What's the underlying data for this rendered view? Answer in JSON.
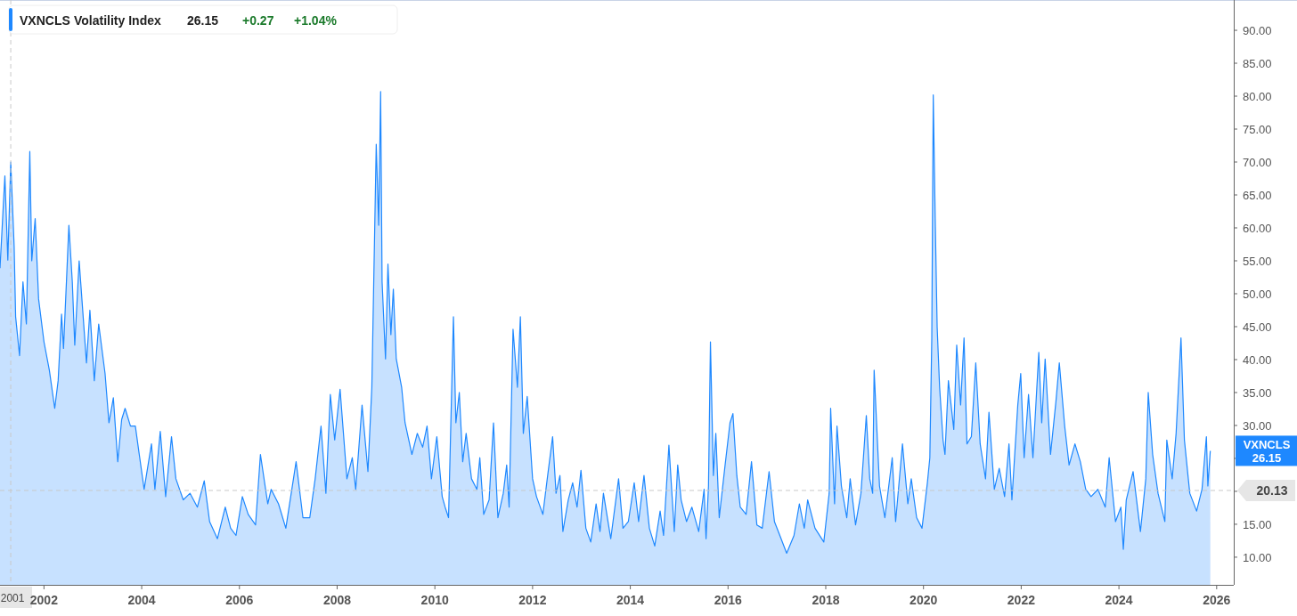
{
  "chart_data": {
    "type": "area",
    "title": "VXNCLS",
    "subtitle": "Volatility Index",
    "annotations": [
      "26.15",
      "+0.27",
      "+1.04%",
      "26.15"
    ],
    "x": [
      2001.1,
      2001.2,
      2001.26,
      2001.32,
      2001.39,
      2001.42,
      2001.5,
      2001.57,
      2001.64,
      2001.71,
      2001.75,
      2001.82,
      2001.89,
      2002.0,
      2002.11,
      2002.22,
      2002.29,
      2002.36,
      2002.4,
      2002.51,
      2002.58,
      2002.63,
      2002.72,
      2002.87,
      2002.94,
      2003.03,
      2003.12,
      2003.25,
      2003.33,
      2003.42,
      2003.51,
      2003.59,
      2003.66,
      2003.77,
      2003.87,
      2003.95,
      2004.05,
      2004.2,
      2004.27,
      2004.38,
      2004.49,
      2004.61,
      2004.7,
      2004.85,
      2004.99,
      2005.14,
      2005.28,
      2005.39,
      2005.55,
      2005.71,
      2005.82,
      2005.93,
      2006.06,
      2006.18,
      2006.33,
      2006.43,
      2006.58,
      2006.65,
      2006.8,
      2006.95,
      2007.16,
      2007.3,
      2007.44,
      2007.55,
      2007.67,
      2007.77,
      2007.86,
      2007.95,
      2008.06,
      2008.2,
      2008.31,
      2008.38,
      2008.51,
      2008.63,
      2008.71,
      2008.8,
      2008.85,
      2008.89,
      2008.92,
      2008.99,
      2009.04,
      2009.1,
      2009.15,
      2009.21,
      2009.32,
      2009.39,
      2009.53,
      2009.64,
      2009.75,
      2009.84,
      2009.93,
      2010.04,
      2010.15,
      2010.21,
      2010.28,
      2010.38,
      2010.43,
      2010.5,
      2010.57,
      2010.64,
      2010.75,
      2010.86,
      2010.92,
      2011.0,
      2011.11,
      2011.2,
      2011.29,
      2011.4,
      2011.47,
      2011.52,
      2011.6,
      2011.69,
      2011.75,
      2011.81,
      2011.89,
      2012.0,
      2012.08,
      2012.21,
      2012.3,
      2012.41,
      2012.48,
      2012.56,
      2012.62,
      2012.73,
      2012.82,
      2012.91,
      2012.99,
      2013.09,
      2013.19,
      2013.3,
      2013.38,
      2013.45,
      2013.6,
      2013.76,
      2013.85,
      2013.96,
      2014.08,
      2014.17,
      2014.28,
      2014.39,
      2014.5,
      2014.61,
      2014.68,
      2014.79,
      2014.9,
      2014.97,
      2015.04,
      2015.15,
      2015.26,
      2015.4,
      2015.51,
      2015.55,
      2015.6,
      2015.64,
      2015.7,
      2015.75,
      2015.82,
      2015.94,
      2016.04,
      2016.1,
      2016.18,
      2016.25,
      2016.37,
      2016.48,
      2016.59,
      2016.7,
      2016.84,
      2016.95,
      2017.06,
      2017.2,
      2017.35,
      2017.46,
      2017.56,
      2017.63,
      2017.78,
      2017.96,
      2018.07,
      2018.1,
      2018.18,
      2018.23,
      2018.32,
      2018.43,
      2018.5,
      2018.61,
      2018.72,
      2018.83,
      2018.9,
      2018.96,
      2018.99,
      2019.1,
      2019.21,
      2019.36,
      2019.43,
      2019.57,
      2019.68,
      2019.75,
      2019.86,
      2019.97,
      2020.08,
      2020.13,
      2020.17,
      2020.2,
      2020.24,
      2020.28,
      2020.33,
      2020.4,
      2020.44,
      2020.51,
      2020.62,
      2020.68,
      2020.76,
      2020.83,
      2020.89,
      2020.98,
      2021.07,
      2021.16,
      2021.27,
      2021.34,
      2021.45,
      2021.55,
      2021.66,
      2021.75,
      2021.81,
      2021.93,
      2021.99,
      2022.06,
      2022.15,
      2022.24,
      2022.36,
      2022.42,
      2022.49,
      2022.6,
      2022.71,
      2022.78,
      2022.89,
      2022.98,
      2023.1,
      2023.21,
      2023.32,
      2023.43,
      2023.57,
      2023.72,
      2023.8,
      2023.93,
      2024.04,
      2024.09,
      2024.15,
      2024.29,
      2024.44,
      2024.55,
      2024.6,
      2024.69,
      2024.8,
      2024.94,
      2024.98,
      2025.09,
      2025.17,
      2025.27,
      2025.34,
      2025.45,
      2025.59,
      2025.7,
      2025.79,
      2025.82,
      2025.87
    ],
    "series": [
      {
        "name": "VXNCLS",
        "color": "#1e88ff",
        "values": [
          53.9,
          67.9,
          55.1,
          70.0,
          57.1,
          46.5,
          40.6,
          51.8,
          45.4,
          71.6,
          55.0,
          61.4,
          49.2,
          42.7,
          38.4,
          32.6,
          36.8,
          46.9,
          41.7,
          60.4,
          51.8,
          42.2,
          55.0,
          39.5,
          47.5,
          36.8,
          45.4,
          37.9,
          30.4,
          34.2,
          24.5,
          30.9,
          32.6,
          29.9,
          29.9,
          25.6,
          20.3,
          27.2,
          20.3,
          29.1,
          19.2,
          28.3,
          21.9,
          18.7,
          19.7,
          17.6,
          21.6,
          15.4,
          12.8,
          17.6,
          14.4,
          13.3,
          19.2,
          16.5,
          14.9,
          25.6,
          18.1,
          20.3,
          18.1,
          14.4,
          24.5,
          16.0,
          16.0,
          21.9,
          29.9,
          19.7,
          34.7,
          27.8,
          35.5,
          21.9,
          25.1,
          20.3,
          33.1,
          23.0,
          35.8,
          72.7,
          60.4,
          80.7,
          51.8,
          40.1,
          54.5,
          43.8,
          50.7,
          40.1,
          35.8,
          30.4,
          25.6,
          28.8,
          26.7,
          29.9,
          21.9,
          28.3,
          19.2,
          17.6,
          16.0,
          46.5,
          30.4,
          35.0,
          24.5,
          28.8,
          21.9,
          20.3,
          25.1,
          16.5,
          18.7,
          30.4,
          16.0,
          19.7,
          24.0,
          17.6,
          44.6,
          35.8,
          46.5,
          28.8,
          34.4,
          21.9,
          19.2,
          16.5,
          21.9,
          28.3,
          19.7,
          22.4,
          13.9,
          18.7,
          21.3,
          17.6,
          23.2,
          14.4,
          12.3,
          18.1,
          13.9,
          19.7,
          12.8,
          21.9,
          14.4,
          15.4,
          21.3,
          15.4,
          22.4,
          14.4,
          11.7,
          17.0,
          13.3,
          27.0,
          13.9,
          24.0,
          18.7,
          15.4,
          17.6,
          13.9,
          20.3,
          12.8,
          20.8,
          42.7,
          22.4,
          28.8,
          16.0,
          24.0,
          30.4,
          31.8,
          22.4,
          17.6,
          16.5,
          24.5,
          14.9,
          14.4,
          23.0,
          15.4,
          13.3,
          10.6,
          13.3,
          18.1,
          14.4,
          18.7,
          14.4,
          12.3,
          19.7,
          32.6,
          18.1,
          29.9,
          20.8,
          16.0,
          21.9,
          14.9,
          19.7,
          31.5,
          21.9,
          19.7,
          38.4,
          20.8,
          16.0,
          25.1,
          15.4,
          27.2,
          18.1,
          21.9,
          16.0,
          14.4,
          21.3,
          25.1,
          43.3,
          80.2,
          61.4,
          44.9,
          35.8,
          27.8,
          25.6,
          36.8,
          29.4,
          42.2,
          33.1,
          43.3,
          27.2,
          28.3,
          39.5,
          27.2,
          21.9,
          32.0,
          20.3,
          23.5,
          19.2,
          27.2,
          18.7,
          33.1,
          37.9,
          25.1,
          34.7,
          25.1,
          41.1,
          30.4,
          40.1,
          25.6,
          33.6,
          39.5,
          29.9,
          24.0,
          27.2,
          24.5,
          20.3,
          19.2,
          20.3,
          17.6,
          25.1,
          15.4,
          17.6,
          11.2,
          18.7,
          23.0,
          13.9,
          21.9,
          35.0,
          25.6,
          19.7,
          15.4,
          27.8,
          21.9,
          28.8,
          43.3,
          27.8,
          19.7,
          17.0,
          20.3,
          28.3,
          20.8,
          26.15
        ]
      }
    ],
    "xlim": [
      2001.1,
      2026.35
    ],
    "xticks": [
      2002,
      2004,
      2006,
      2008,
      2010,
      2012,
      2014,
      2016,
      2018,
      2020,
      2022,
      2024,
      2026
    ],
    "ylim": [
      5.8,
      94.6
    ],
    "yticks": [
      {
        "value": 10,
        "label": "10.00"
      },
      {
        "value": 15,
        "label": "15.00"
      },
      {
        "value": 20,
        "label": null
      },
      {
        "value": 25,
        "label": null
      },
      {
        "value": 30,
        "label": "30.00"
      },
      {
        "value": 35,
        "label": "35.00"
      },
      {
        "value": 40,
        "label": "40.00"
      },
      {
        "value": 45,
        "label": "45.00"
      },
      {
        "value": 50,
        "label": "50.00"
      },
      {
        "value": 55,
        "label": "55.00"
      },
      {
        "value": 60,
        "label": "60.00"
      },
      {
        "value": 65,
        "label": "65.00"
      },
      {
        "value": 70,
        "label": "70.00"
      },
      {
        "value": 75,
        "label": "75.00"
      },
      {
        "value": 80,
        "label": "80.00"
      },
      {
        "value": 85,
        "label": "85.00"
      },
      {
        "value": 90,
        "label": "90.00"
      }
    ],
    "ref_lines": [
      {
        "axis": "y",
        "value": 20.13,
        "label": "20.13",
        "color": "#c8c8c8",
        "line_style": "dashed"
      },
      {
        "axis": "x",
        "value": 2001.32,
        "label": "2001",
        "color": "#c8c8c8",
        "line_style": "dashed"
      }
    ],
    "grid": false
  }
}
